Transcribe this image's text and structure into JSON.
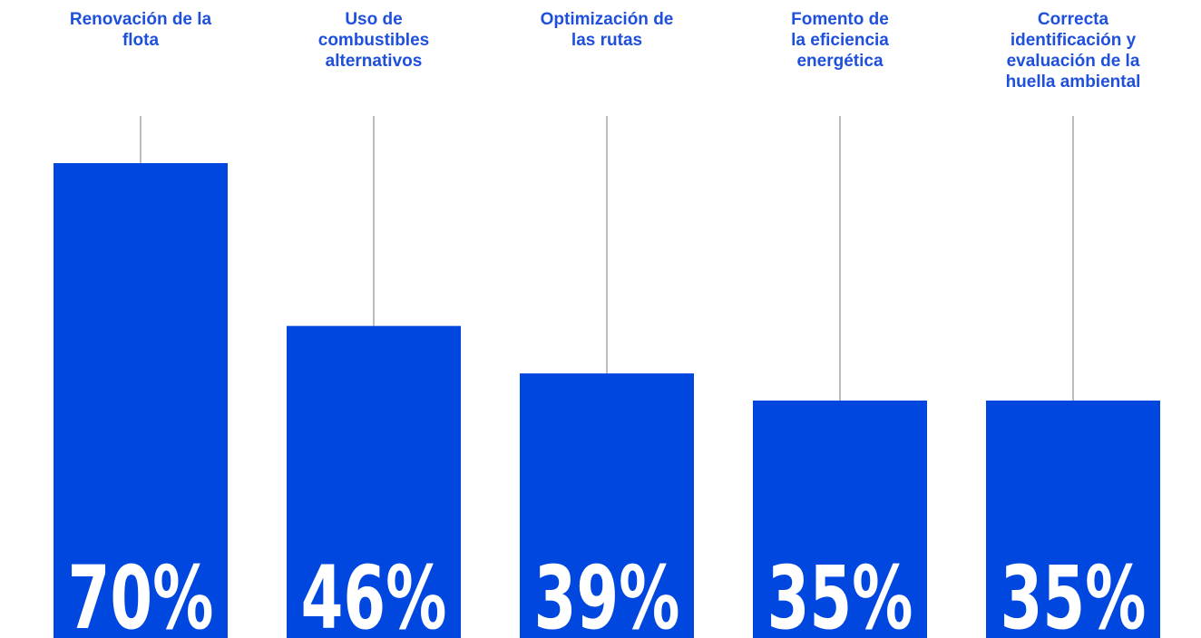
{
  "chart_data": {
    "type": "bar",
    "categories": [
      "Renovación de la\nflota",
      "Uso de\ncombustibles\nalternativos",
      "Optimización de\nlas rutas",
      "Fomento de\nla eficiencia\nenergética",
      "Correcta\nidentificación y\nevaluación de la\nhuella ambiental"
    ],
    "values": [
      70,
      46,
      39,
      35,
      35
    ],
    "value_labels": [
      "70%",
      "46%",
      "39%",
      "35%",
      "35%"
    ],
    "color": "#0047e0"
  }
}
